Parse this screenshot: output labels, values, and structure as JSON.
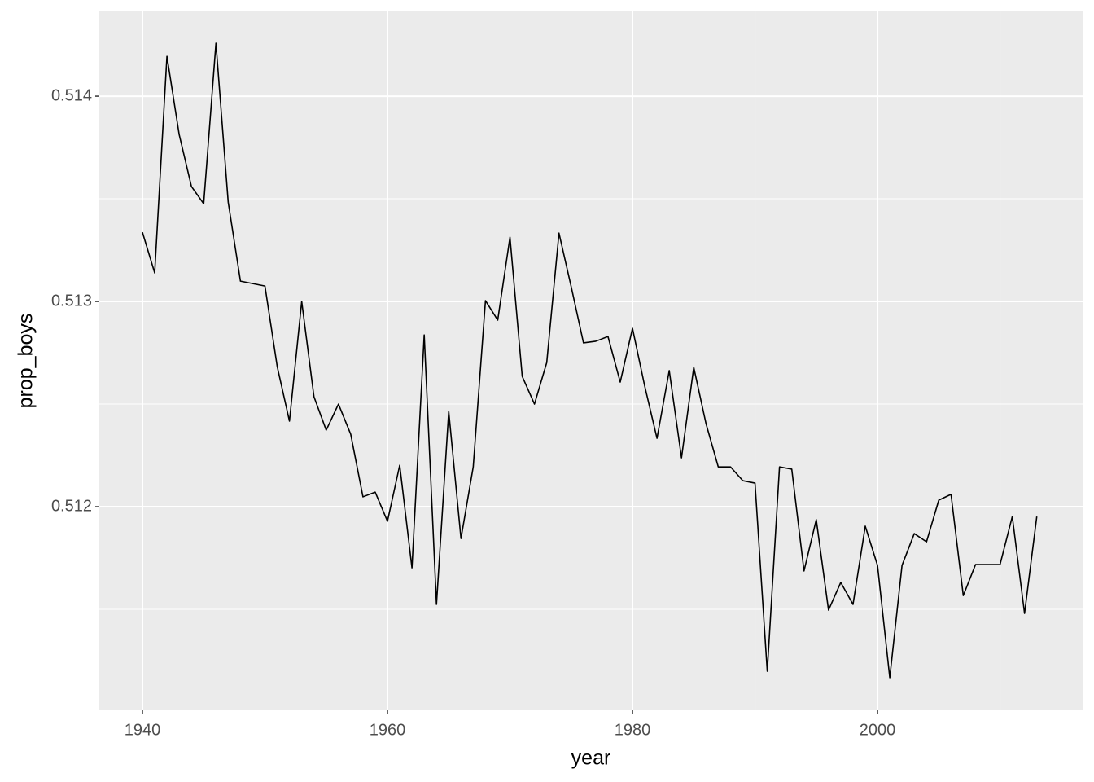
{
  "chart_data": {
    "type": "line",
    "x_label": "year",
    "y_label": "prop_boys",
    "x": [
      1940,
      1941,
      1942,
      1943,
      1944,
      1945,
      1946,
      1947,
      1948,
      1949,
      1950,
      1951,
      1952,
      1953,
      1954,
      1955,
      1956,
      1957,
      1958,
      1959,
      1960,
      1961,
      1962,
      1963,
      1964,
      1965,
      1966,
      1967,
      1968,
      1969,
      1970,
      1971,
      1972,
      1973,
      1974,
      1975,
      1976,
      1977,
      1978,
      1979,
      1980,
      1981,
      1982,
      1983,
      1984,
      1985,
      1986,
      1987,
      1988,
      1989,
      1990,
      1991,
      1992,
      1993,
      1994,
      1995,
      1996,
      1997,
      1998,
      1999,
      2000,
      2001,
      2002,
      2003,
      2004,
      2005,
      2006,
      2007,
      2008,
      2009,
      2010,
      2011,
      2012,
      2013
    ],
    "values": [
      0.513337,
      0.513139,
      0.514194,
      0.513813,
      0.51356,
      0.513476,
      0.514258,
      0.513484,
      0.513099,
      0.513087,
      0.513075,
      0.512683,
      0.512417,
      0.513,
      0.512536,
      0.512373,
      0.5125,
      0.512353,
      0.512048,
      0.512071,
      0.511929,
      0.512202,
      0.511702,
      0.512837,
      0.511524,
      0.512464,
      0.511845,
      0.512194,
      0.513004,
      0.512909,
      0.513313,
      0.512635,
      0.5125,
      0.512702,
      0.513333,
      0.513071,
      0.512798,
      0.512806,
      0.512829,
      0.512607,
      0.512869,
      0.512587,
      0.512333,
      0.512663,
      0.512238,
      0.512679,
      0.512405,
      0.512194,
      0.512194,
      0.512127,
      0.512115,
      0.511198,
      0.512194,
      0.512183,
      0.511687,
      0.511937,
      0.511496,
      0.511631,
      0.511524,
      0.511905,
      0.511714,
      0.511167,
      0.511714,
      0.511869,
      0.511829,
      0.512032,
      0.51206,
      0.511567,
      0.511718,
      0.511718,
      0.511718,
      0.511952,
      0.51148,
      0.511952
    ],
    "color": "#000000",
    "xlim": [
      1936.48,
      2016.74
    ],
    "xticks": [
      1940,
      1960,
      1980,
      2000
    ],
    "ylim": [
      0.511008,
      0.514413
    ],
    "yticks": [
      0.512,
      0.513,
      0.514
    ],
    "grid": true
  }
}
